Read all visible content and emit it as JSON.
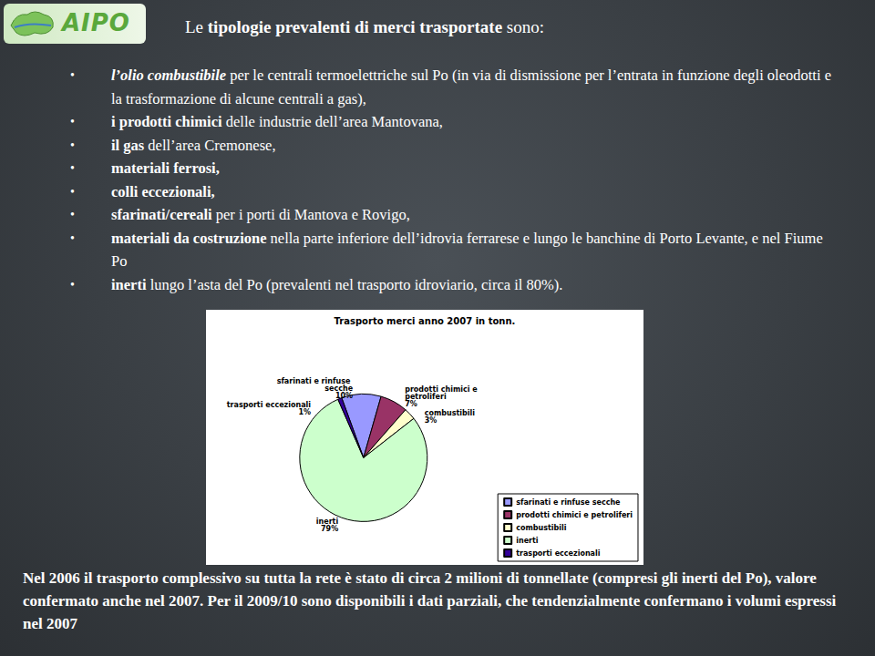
{
  "header": {
    "logo": "AIPO",
    "title": [
      {
        "text": "Le ",
        "bold": false
      },
      {
        "text": "tipologie prevalenti di merci trasportate",
        "bold": true
      },
      {
        "text": " sono:",
        "bold": false
      }
    ]
  },
  "bullets": [
    [
      {
        "text": "l’olio combustibile",
        "bold": true,
        "italic": true
      },
      {
        "text": " per le centrali termoelettriche sul Po (in via di dismissione per l’entrata in funzione degli oleodotti e la trasformazione di alcune centrali a gas),",
        "bold": false
      }
    ],
    [
      {
        "text": "i prodotti chimici",
        "bold": true
      },
      {
        "text": " delle industrie dell’area Mantovana,",
        "bold": false
      }
    ],
    [
      {
        "text": "il gas",
        "bold": true
      },
      {
        "text": " dell’area Cremonese,",
        "bold": false
      }
    ],
    [
      {
        "text": "materiali ferrosi,",
        "bold": true
      }
    ],
    [
      {
        "text": "colli eccezionali,",
        "bold": true
      }
    ],
    [
      {
        "text": "sfarinati/cereali",
        "bold": true
      },
      {
        "text": " per i porti di Mantova e Rovigo,",
        "bold": false
      }
    ],
    [
      {
        "text": "materiali da costruzione",
        "bold": true
      },
      {
        "text": " nella parte inferiore dell’idrovia ferrarese e lungo le banchine di Porto Levante, e nel Fiume Po",
        "bold": false
      }
    ],
    [
      {
        "text": "inerti",
        "bold": true
      },
      {
        "text": " lungo l’asta del Po (prevalenti nel trasporto idroviario, circa il 80%).",
        "bold": false
      }
    ]
  ],
  "chart_data": {
    "type": "pie",
    "title": "Trasporto merci anno 2007 in tonn.",
    "categories": [
      "sfarinati e rinfuse secche",
      "prodotti chimici e petroliferi",
      "combustibili",
      "inerti",
      "trasporti eccezionali"
    ],
    "values": [
      10,
      7,
      3,
      79,
      1
    ],
    "value_labels": [
      "10%",
      "7%",
      "3%",
      "79%",
      "1%"
    ],
    "colors": [
      "#9999ff",
      "#993366",
      "#ffffcc",
      "#ccffcc",
      "#330099"
    ],
    "data_labels": true,
    "legend": "bottom-right"
  },
  "footer": "Nel 2006 il trasporto complessivo su tutta la rete è stato di circa 2 milioni di tonnellate (compresi gli inerti del Po), valore confermato anche nel 2007. Per il 2009/10 sono disponibili i dati parziali, che tendenzialmente confermano i volumi espressi nel 2007"
}
